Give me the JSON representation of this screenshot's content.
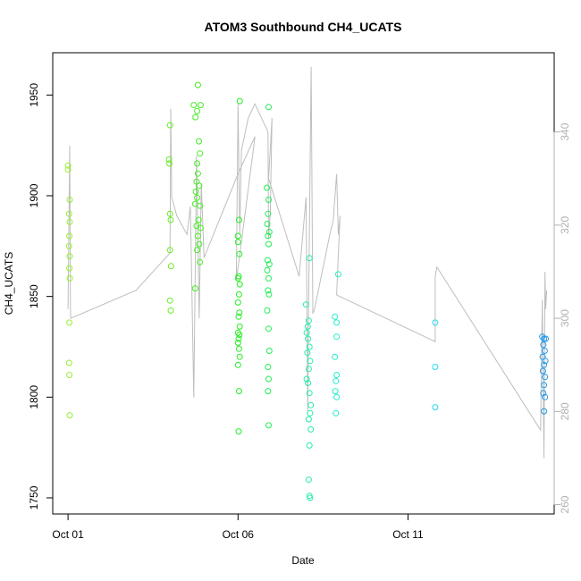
{
  "chart_data": {
    "type": "scatter",
    "title": "ATOM3 Southbound CH4_UCATS",
    "xlabel": "Date",
    "ylabel": "CH4_UCATS",
    "x_ticks": [
      "Oct 01",
      "Oct 06",
      "Oct 11"
    ],
    "x_tick_values": [
      1,
      6,
      11
    ],
    "xlim": [
      0.55,
      15.3
    ],
    "y_ticks": [
      1750,
      1800,
      1850,
      1900,
      1950
    ],
    "ylim": [
      1742,
      1971
    ],
    "y2_ticks": [
      260,
      280,
      300,
      320,
      340
    ],
    "y2lim": [
      258,
      357
    ],
    "grid": false,
    "legend": "none",
    "colors": {
      "secondary_axis": "#b0b0b0",
      "line": "#bebebe"
    },
    "series": [
      {
        "values": [
          [
            1.0,
            1915,
            "#99ee33"
          ],
          [
            1.0,
            1913,
            "#99ee33"
          ],
          [
            1.05,
            1898,
            "#99ee33"
          ],
          [
            1.03,
            1891,
            "#99ee33"
          ],
          [
            1.05,
            1887,
            "#99ee33"
          ],
          [
            1.04,
            1880,
            "#99ee33"
          ],
          [
            1.03,
            1875,
            "#99ee33"
          ],
          [
            1.05,
            1870,
            "#99ee33"
          ],
          [
            1.04,
            1864,
            "#99ee33"
          ],
          [
            1.05,
            1859,
            "#99ee33"
          ],
          [
            1.04,
            1837,
            "#99ee33"
          ],
          [
            1.03,
            1817,
            "#99ee33"
          ],
          [
            1.04,
            1811,
            "#99ee33"
          ],
          [
            1.05,
            1791,
            "#99ee33"
          ],
          [
            4.0,
            1935,
            "#66ee22"
          ],
          [
            3.97,
            1918,
            "#66ee22"
          ],
          [
            3.98,
            1916,
            "#66ee22"
          ],
          [
            4.0,
            1891,
            "#66ee22"
          ],
          [
            4.02,
            1888,
            "#66ee22"
          ],
          [
            4.0,
            1873,
            "#66ee22"
          ],
          [
            4.03,
            1865,
            "#66ee22"
          ],
          [
            4.0,
            1848,
            "#66ee22"
          ],
          [
            4.02,
            1843,
            "#66ee22"
          ],
          [
            4.7,
            1945,
            "#44ee22"
          ],
          [
            4.82,
            1955,
            "#44ee22"
          ],
          [
            4.9,
            1945,
            "#44ee22"
          ],
          [
            4.8,
            1942,
            "#44ee22"
          ],
          [
            4.75,
            1939,
            "#44ee22"
          ],
          [
            4.85,
            1927,
            "#44ee22"
          ],
          [
            4.88,
            1921,
            "#44ee22"
          ],
          [
            4.8,
            1916,
            "#44ee22"
          ],
          [
            4.82,
            1911,
            "#44ee22"
          ],
          [
            4.78,
            1907,
            "#44ee22"
          ],
          [
            4.86,
            1905,
            "#44ee22"
          ],
          [
            4.76,
            1902,
            "#44ee22"
          ],
          [
            4.8,
            1899,
            "#44ee22"
          ],
          [
            4.74,
            1896,
            "#44ee22"
          ],
          [
            4.88,
            1895,
            "#44ee22"
          ],
          [
            4.84,
            1888,
            "#44ee22"
          ],
          [
            4.78,
            1885,
            "#44ee22"
          ],
          [
            4.9,
            1884,
            "#44ee22"
          ],
          [
            4.82,
            1880,
            "#44ee22"
          ],
          [
            4.86,
            1876,
            "#44ee22"
          ],
          [
            4.8,
            1873,
            "#44ee22"
          ],
          [
            4.88,
            1867,
            "#44ee22"
          ],
          [
            4.74,
            1854,
            "#44ee22"
          ],
          [
            6.05,
            1947,
            "#22ee22"
          ],
          [
            6.0,
            1880,
            "#22ee22"
          ],
          [
            6.03,
            1888,
            "#22ee22"
          ],
          [
            6.0,
            1877,
            "#22ee22"
          ],
          [
            6.04,
            1871,
            "#22ee22"
          ],
          [
            6.02,
            1860,
            "#22ee22"
          ],
          [
            6.0,
            1859,
            "#22ee22"
          ],
          [
            6.05,
            1856,
            "#22ee22"
          ],
          [
            6.03,
            1851,
            "#22ee22"
          ],
          [
            6.0,
            1847,
            "#22ee22"
          ],
          [
            6.04,
            1842,
            "#22ee22"
          ],
          [
            6.02,
            1840,
            "#22ee22"
          ],
          [
            6.05,
            1835,
            "#22ee22"
          ],
          [
            6.0,
            1832,
            "#22ee22"
          ],
          [
            6.04,
            1831,
            "#22ee22"
          ],
          [
            6.02,
            1829,
            "#22ee22"
          ],
          [
            6.0,
            1827,
            "#22ee22"
          ],
          [
            6.03,
            1824,
            "#22ee22"
          ],
          [
            6.05,
            1820,
            "#22ee22"
          ],
          [
            6.0,
            1816,
            "#22ee22"
          ],
          [
            6.03,
            1803,
            "#22ee22"
          ],
          [
            6.02,
            1783,
            "#22ee22"
          ],
          [
            6.9,
            1944,
            "#22ee55"
          ],
          [
            6.85,
            1904,
            "#22ee55"
          ],
          [
            6.9,
            1898,
            "#22ee55"
          ],
          [
            6.88,
            1891,
            "#22ee55"
          ],
          [
            6.86,
            1886,
            "#22ee55"
          ],
          [
            6.92,
            1882,
            "#22ee55"
          ],
          [
            6.88,
            1880,
            "#22ee55"
          ],
          [
            6.9,
            1876,
            "#22ee55"
          ],
          [
            6.87,
            1868,
            "#22ee55"
          ],
          [
            6.92,
            1866,
            "#22ee55"
          ],
          [
            6.86,
            1863,
            "#22ee55"
          ],
          [
            6.9,
            1859,
            "#22ee55"
          ],
          [
            6.88,
            1853,
            "#22ee55"
          ],
          [
            6.91,
            1851,
            "#22ee55"
          ],
          [
            6.86,
            1843,
            "#22ee55"
          ],
          [
            6.9,
            1834,
            "#22ee55"
          ],
          [
            6.92,
            1823,
            "#22ee55"
          ],
          [
            6.88,
            1815,
            "#22ee55"
          ],
          [
            6.9,
            1809,
            "#22ee55"
          ],
          [
            6.88,
            1803,
            "#22ee55"
          ],
          [
            6.9,
            1786,
            "#22ee55"
          ],
          [
            8.1,
            1869,
            "#22eeaa"
          ],
          [
            8.0,
            1846,
            "#22eeaa"
          ],
          [
            8.08,
            1838,
            "#22eeaa"
          ],
          [
            8.05,
            1835,
            "#22eeaa"
          ],
          [
            8.02,
            1832,
            "#22eeaa"
          ],
          [
            8.06,
            1829,
            "#22eeaa"
          ],
          [
            8.1,
            1825,
            "#22eeaa"
          ],
          [
            8.04,
            1822,
            "#22eeaa"
          ],
          [
            8.12,
            1818,
            "#22eeaa"
          ],
          [
            8.08,
            1814,
            "#22eeaa"
          ],
          [
            8.02,
            1809,
            "#22eeaa"
          ],
          [
            8.06,
            1807,
            "#22eeaa"
          ],
          [
            8.1,
            1802,
            "#22eeaa"
          ],
          [
            8.14,
            1796,
            "#22eeaa"
          ],
          [
            8.12,
            1792,
            "#22eeaa"
          ],
          [
            8.08,
            1789,
            "#22eeaa"
          ],
          [
            8.14,
            1784,
            "#22eeaa"
          ],
          [
            8.1,
            1776,
            "#22eeaa"
          ],
          [
            8.08,
            1759,
            "#22eeaa"
          ],
          [
            8.1,
            1751,
            "#22eeaa"
          ],
          [
            8.12,
            1750,
            "#22eeaa"
          ],
          [
            8.85,
            1840,
            "#22eecc"
          ],
          [
            8.9,
            1837,
            "#22eecc"
          ],
          [
            8.95,
            1861,
            "#22eecc"
          ],
          [
            8.9,
            1830,
            "#22eecc"
          ],
          [
            8.85,
            1820,
            "#22eecc"
          ],
          [
            8.9,
            1811,
            "#22eecc"
          ],
          [
            8.88,
            1808,
            "#22eecc"
          ],
          [
            8.86,
            1803,
            "#22eecc"
          ],
          [
            8.9,
            1800,
            "#22eecc"
          ],
          [
            8.88,
            1792,
            "#22eecc"
          ],
          [
            11.8,
            1837,
            "#22ddee"
          ],
          [
            11.8,
            1815,
            "#22ddee"
          ],
          [
            11.8,
            1795,
            "#22ddee"
          ],
          [
            14.95,
            1830,
            "#2299ee"
          ],
          [
            15.0,
            1829,
            "#2299ee"
          ],
          [
            15.05,
            1829,
            "#2299ee"
          ],
          [
            14.98,
            1826,
            "#2299ee"
          ],
          [
            15.02,
            1823,
            "#2299ee"
          ],
          [
            14.96,
            1820,
            "#2299ee"
          ],
          [
            15.04,
            1818,
            "#2299ee"
          ],
          [
            15.0,
            1816,
            "#2299ee"
          ],
          [
            14.97,
            1813,
            "#2299ee"
          ],
          [
            15.03,
            1810,
            "#2299ee"
          ],
          [
            15.0,
            1806,
            "#2299ee"
          ],
          [
            14.98,
            1802,
            "#2299ee"
          ],
          [
            15.03,
            1800,
            "#2299ee"
          ],
          [
            15.0,
            1793,
            "#2299ee"
          ]
        ]
      },
      {
        "axis": "right",
        "values": [
          [
            1.0,
            302
          ],
          [
            1.05,
            337
          ],
          [
            1.07,
            302
          ],
          [
            1.08,
            300
          ],
          [
            3.0,
            306
          ],
          [
            4.0,
            314
          ],
          [
            4.02,
            345
          ],
          [
            4.05,
            326
          ],
          [
            4.2,
            322
          ],
          [
            4.5,
            318
          ],
          [
            4.6,
            324
          ],
          [
            4.7,
            283
          ],
          [
            4.78,
            335
          ],
          [
            4.86,
            300
          ],
          [
            4.92,
            329
          ],
          [
            5.0,
            313
          ],
          [
            6.0,
            331
          ],
          [
            6.5,
            339
          ],
          [
            5.95,
            308
          ],
          [
            6.0,
            346
          ],
          [
            6.05,
            318
          ],
          [
            6.1,
            336
          ],
          [
            6.3,
            343
          ],
          [
            6.5,
            346
          ],
          [
            6.88,
            340
          ],
          [
            6.9,
            317
          ],
          [
            6.95,
            323
          ],
          [
            7.0,
            343
          ],
          [
            6.9,
            330
          ],
          [
            7.8,
            309
          ],
          [
            8.0,
            326
          ],
          [
            8.05,
            280
          ],
          [
            8.08,
            305
          ],
          [
            8.15,
            354
          ],
          [
            8.2,
            301
          ],
          [
            8.25,
            302
          ],
          [
            8.7,
            318
          ],
          [
            8.8,
            321
          ],
          [
            8.9,
            331
          ],
          [
            8.95,
            318
          ],
          [
            9.0,
            322
          ],
          [
            8.9,
            305
          ],
          [
            11.8,
            295
          ],
          [
            11.8,
            309
          ],
          [
            11.85,
            311
          ],
          [
            14.9,
            276
          ],
          [
            14.95,
            304
          ],
          [
            15.0,
            270
          ],
          [
            15.03,
            310
          ],
          [
            15.05,
            302
          ],
          [
            15.08,
            306
          ]
        ]
      }
    ]
  }
}
